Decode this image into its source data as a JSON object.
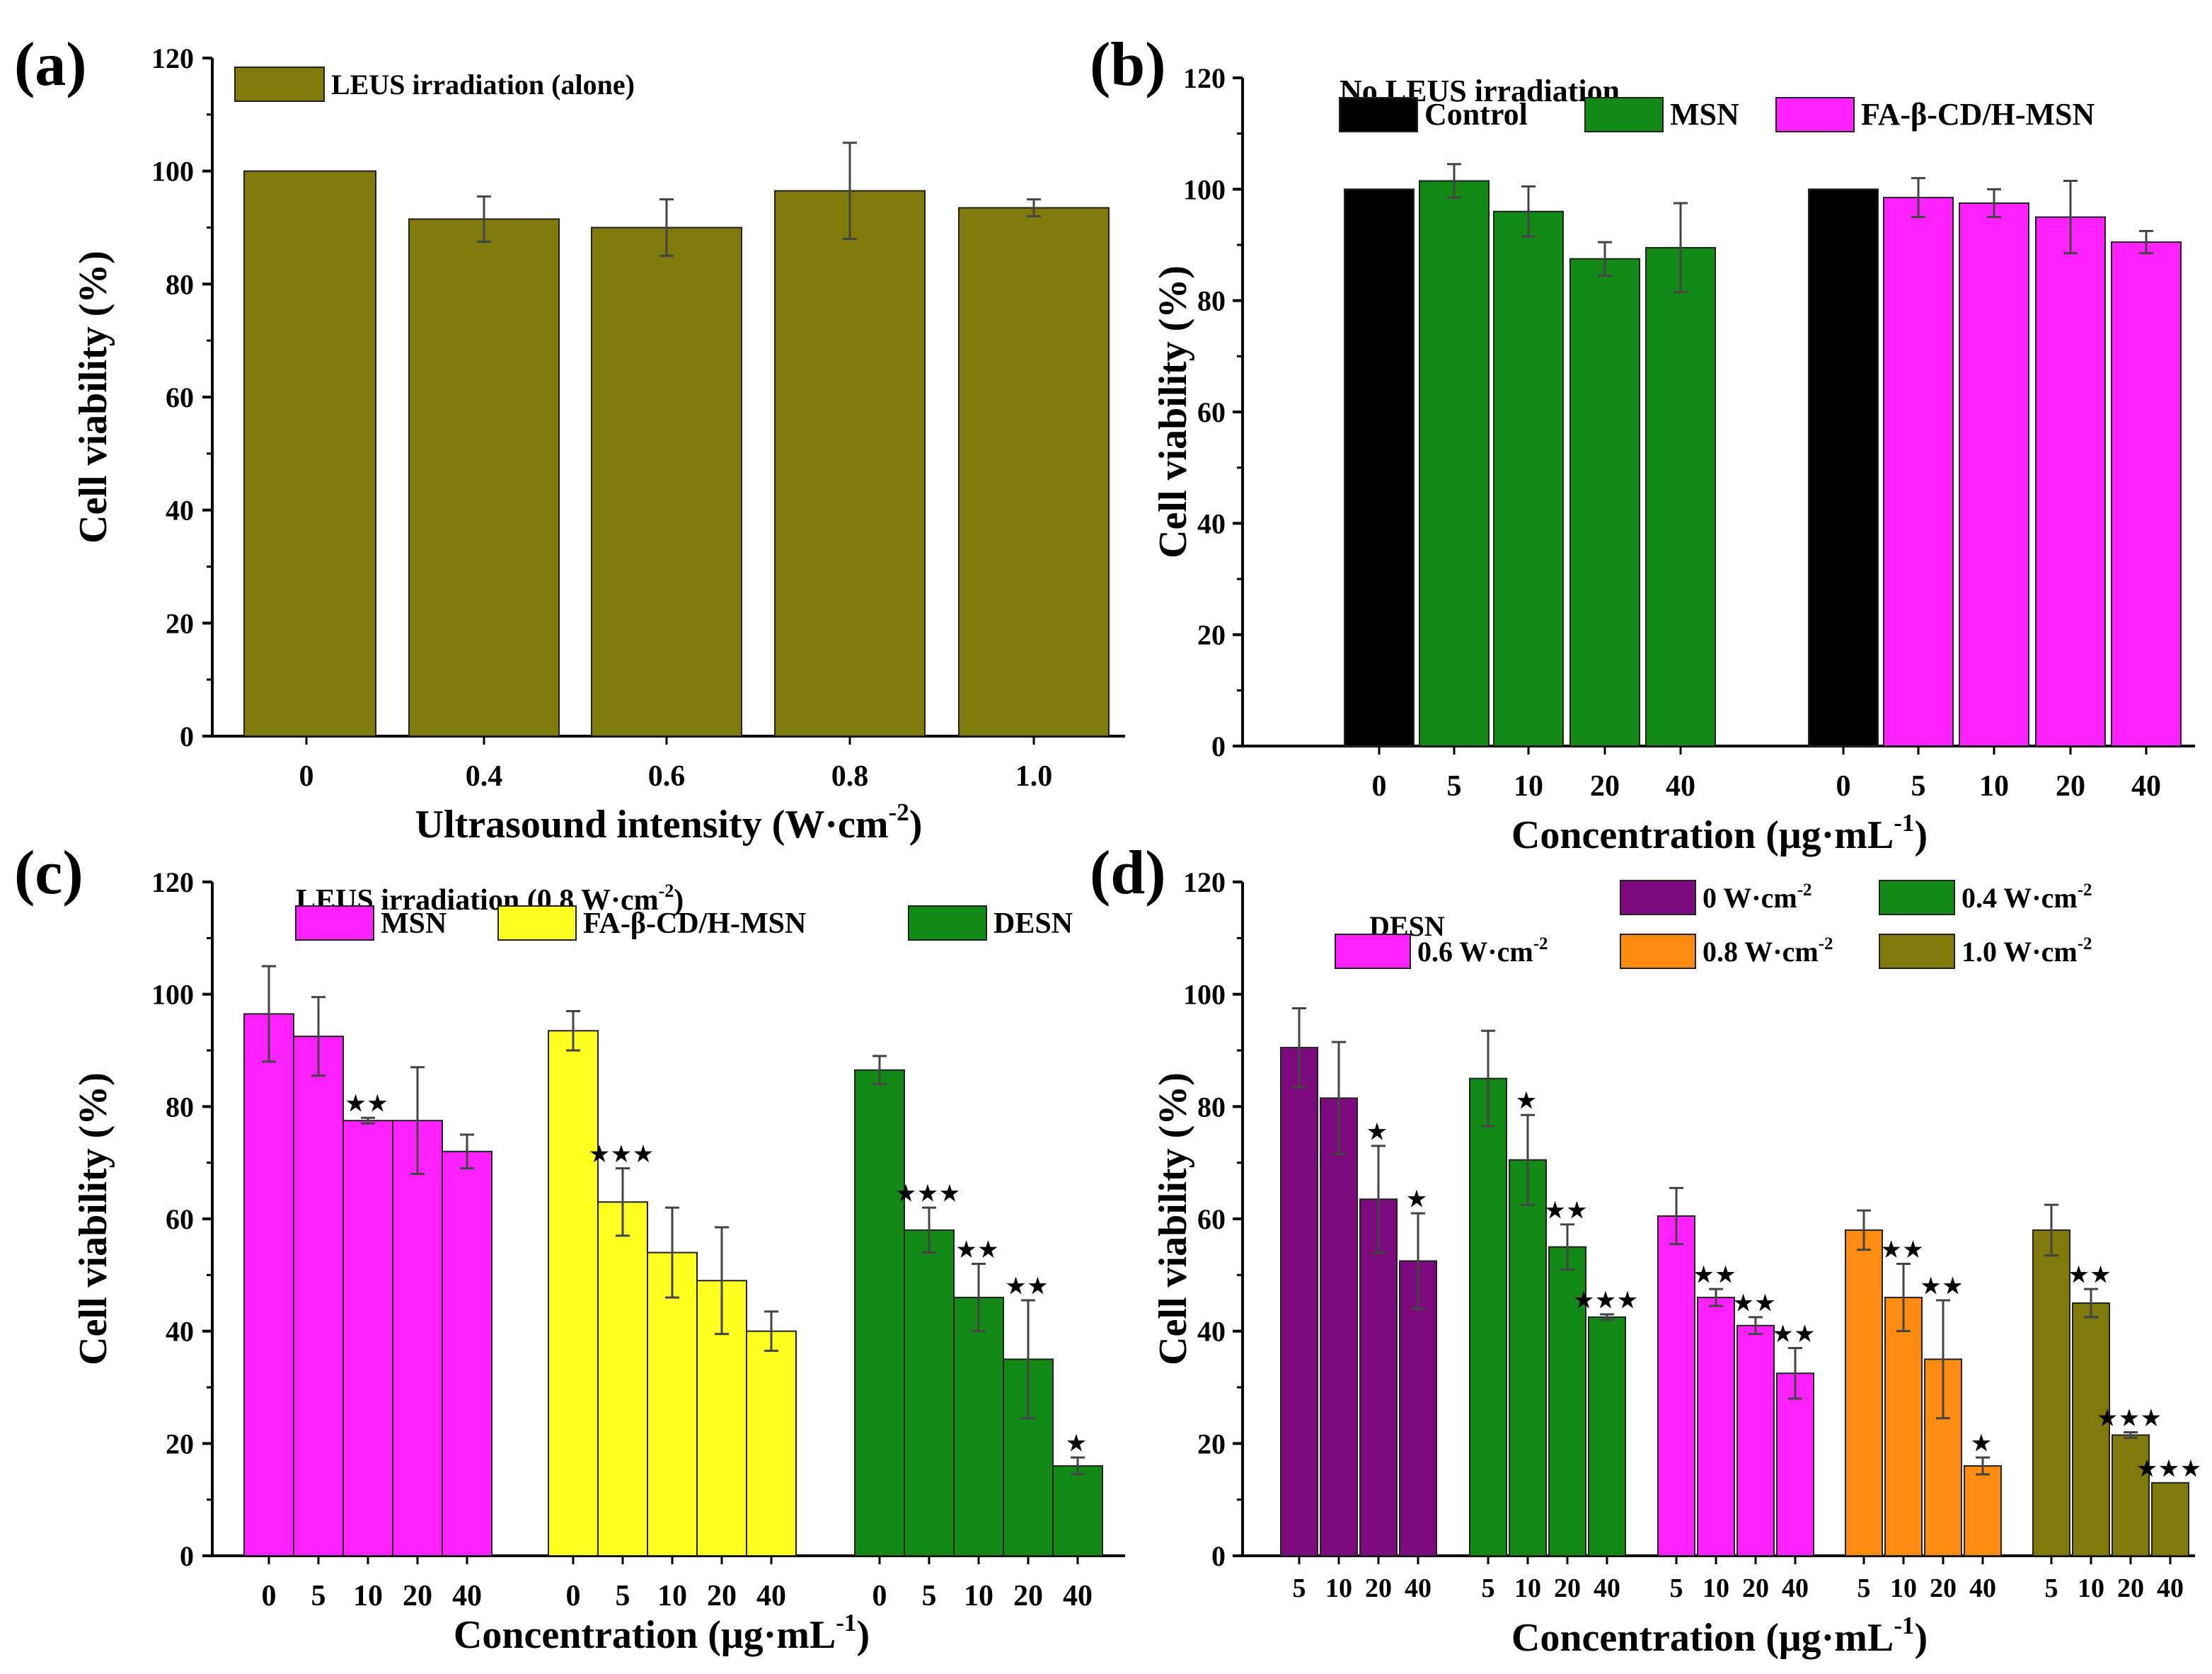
{
  "chart_data": [
    {
      "panel": "(a)",
      "type": "bar",
      "ylabel": "Cell viability (%)",
      "xlabel": "Ultrasound intensity (W·cm",
      "xlabel_sup": "-2",
      "xlabel_end": ")",
      "ylim": [
        0,
        120
      ],
      "yticks": [
        "0",
        "20",
        "40",
        "60",
        "80",
        "100",
        "120"
      ],
      "legend": [
        {
          "name": "LEUS irradiation (alone)",
          "color": "#7f7a0b"
        }
      ],
      "groups": [
        {
          "bars": [
            {
              "label": "0",
              "value": 100,
              "err": 0,
              "color": "#7f7a0b",
              "stars": ""
            },
            {
              "label": "0.4",
              "value": 91.5,
              "err": 4,
              "color": "#7f7a0b",
              "stars": ""
            },
            {
              "label": "0.6",
              "value": 90,
              "err": 5,
              "color": "#7f7a0b",
              "stars": ""
            },
            {
              "label": "0.8",
              "value": 96.5,
              "err": 8.5,
              "color": "#7f7a0b",
              "stars": ""
            },
            {
              "label": "1.0",
              "value": 93.5,
              "err": 1.5,
              "color": "#7f7a0b",
              "stars": ""
            }
          ]
        }
      ]
    },
    {
      "panel": "(b)",
      "type": "bar",
      "ylabel": "Cell viability (%)",
      "xlabel": "Concentration (μg·mL",
      "xlabel_sup": "-1",
      "xlabel_end": ")",
      "ylim": [
        0,
        120
      ],
      "yticks": [
        "0",
        "20",
        "40",
        "60",
        "80",
        "100",
        "120"
      ],
      "legend_title": "No LEUS irradiation",
      "legend": [
        {
          "name": "Control",
          "color": "#000000"
        },
        {
          "name": "MSN",
          "color": "#138a18"
        },
        {
          "name": "FA-β-CD/H-MSN",
          "color": "#ff22ff"
        }
      ],
      "groups": [
        {
          "bars": [
            {
              "label": "0",
              "value": 100,
              "err": 0,
              "color": "#000000",
              "stars": ""
            },
            {
              "label": "5",
              "value": 101.5,
              "err": 3,
              "color": "#138a18",
              "stars": ""
            },
            {
              "label": "10",
              "value": 96,
              "err": 4.5,
              "color": "#138a18",
              "stars": ""
            },
            {
              "label": "20",
              "value": 87.5,
              "err": 3,
              "color": "#138a18",
              "stars": ""
            },
            {
              "label": "40",
              "value": 89.5,
              "err": 8,
              "color": "#138a18",
              "stars": ""
            }
          ]
        },
        {
          "bars": [
            {
              "label": "0",
              "value": 100,
              "err": 0,
              "color": "#000000",
              "stars": ""
            },
            {
              "label": "5",
              "value": 98.5,
              "err": 3.5,
              "color": "#ff22ff",
              "stars": ""
            },
            {
              "label": "10",
              "value": 97.5,
              "err": 2.5,
              "color": "#ff22ff",
              "stars": ""
            },
            {
              "label": "20",
              "value": 95,
              "err": 6.5,
              "color": "#ff22ff",
              "stars": ""
            },
            {
              "label": "40",
              "value": 90.5,
              "err": 2,
              "color": "#ff22ff",
              "stars": ""
            }
          ]
        }
      ]
    },
    {
      "panel": "(c)",
      "type": "bar",
      "ylabel": "Cell viability (%)",
      "xlabel": "Concentration (μg·mL",
      "xlabel_sup": "-1",
      "xlabel_end": ")",
      "ylim": [
        0,
        120
      ],
      "yticks": [
        "0",
        "20",
        "40",
        "60",
        "80",
        "100",
        "120"
      ],
      "legend_title": "LEUS irradiation (0.8 W·cm",
      "legend_title_sup": "-2",
      "legend_title_end": ")",
      "legend": [
        {
          "name": "MSN",
          "color": "#ff22ff"
        },
        {
          "name": "FA-β-CD/H-MSN",
          "color": "#ffff22"
        },
        {
          "name": "DESN",
          "color": "#138a18"
        }
      ],
      "groups": [
        {
          "bars": [
            {
              "label": "0",
              "value": 96.5,
              "err": 8.5,
              "color": "#ff22ff",
              "stars": ""
            },
            {
              "label": "5",
              "value": 92.5,
              "err": 7,
              "color": "#ff22ff",
              "stars": ""
            },
            {
              "label": "10",
              "value": 77.5,
              "err": 0.5,
              "color": "#ff22ff",
              "stars": "★★"
            },
            {
              "label": "20",
              "value": 77.5,
              "err": 9.5,
              "color": "#ff22ff",
              "stars": ""
            },
            {
              "label": "40",
              "value": 72,
              "err": 3,
              "color": "#ff22ff",
              "stars": ""
            }
          ]
        },
        {
          "bars": [
            {
              "label": "0",
              "value": 93.5,
              "err": 3.5,
              "color": "#ffff22",
              "stars": ""
            },
            {
              "label": "5",
              "value": 63,
              "err": 6,
              "color": "#ffff22",
              "stars": "★★★"
            },
            {
              "label": "10",
              "value": 54,
              "err": 8,
              "color": "#ffff22",
              "stars": ""
            },
            {
              "label": "20",
              "value": 49,
              "err": 9.5,
              "color": "#ffff22",
              "stars": ""
            },
            {
              "label": "40",
              "value": 40,
              "err": 3.5,
              "color": "#ffff22",
              "stars": ""
            }
          ]
        },
        {
          "bars": [
            {
              "label": "0",
              "value": 86.5,
              "err": 2.5,
              "color": "#138a18",
              "stars": ""
            },
            {
              "label": "5",
              "value": 58,
              "err": 4,
              "color": "#138a18",
              "stars": "★★★"
            },
            {
              "label": "10",
              "value": 46,
              "err": 6,
              "color": "#138a18",
              "stars": "★★"
            },
            {
              "label": "20",
              "value": 35,
              "err": 10.5,
              "color": "#138a18",
              "stars": "★★"
            },
            {
              "label": "40",
              "value": 16,
              "err": 1.5,
              "color": "#138a18",
              "stars": "★"
            }
          ]
        }
      ]
    },
    {
      "panel": "(d)",
      "type": "bar",
      "ylabel": "Cell viability (%)",
      "xlabel": "Concentration (μg·mL",
      "xlabel_sup": "-1",
      "xlabel_end": ")",
      "ylim": [
        0,
        120
      ],
      "yticks": [
        "0",
        "20",
        "40",
        "60",
        "80",
        "100",
        "120"
      ],
      "legend_title": "DESN",
      "legend": [
        {
          "name": "0 W·cm",
          "sup": "-2",
          "color": "#7d0b7d"
        },
        {
          "name": "0.4 W·cm",
          "sup": "-2",
          "color": "#138a18"
        },
        {
          "name": "0.6 W·cm",
          "sup": "-2",
          "color": "#ff22ff"
        },
        {
          "name": "0.8 W·cm",
          "sup": "-2",
          "color": "#ff8c11"
        },
        {
          "name": "1.0 W·cm",
          "sup": "-2",
          "color": "#7f7a0b"
        }
      ],
      "groups": [
        {
          "bars": [
            {
              "label": "5",
              "value": 90.5,
              "err": 7,
              "color": "#7d0b7d",
              "stars": ""
            },
            {
              "label": "10",
              "value": 81.5,
              "err": 10,
              "color": "#7d0b7d",
              "stars": ""
            },
            {
              "label": "20",
              "value": 63.5,
              "err": 9.5,
              "color": "#7d0b7d",
              "stars": "★"
            },
            {
              "label": "40",
              "value": 52.5,
              "err": 8.5,
              "color": "#7d0b7d",
              "stars": "★"
            }
          ]
        },
        {
          "bars": [
            {
              "label": "5",
              "value": 85,
              "err": 8.5,
              "color": "#138a18",
              "stars": ""
            },
            {
              "label": "10",
              "value": 70.5,
              "err": 8,
              "color": "#138a18",
              "stars": "★"
            },
            {
              "label": "20",
              "value": 55,
              "err": 4,
              "color": "#138a18",
              "stars": "★★"
            },
            {
              "label": "40",
              "value": 42.5,
              "err": 0.5,
              "color": "#138a18",
              "stars": "★★★"
            }
          ]
        },
        {
          "bars": [
            {
              "label": "5",
              "value": 60.5,
              "err": 5,
              "color": "#ff22ff",
              "stars": ""
            },
            {
              "label": "10",
              "value": 46,
              "err": 1.5,
              "color": "#ff22ff",
              "stars": "★★"
            },
            {
              "label": "20",
              "value": 41,
              "err": 1.5,
              "color": "#ff22ff",
              "stars": "★★"
            },
            {
              "label": "40",
              "value": 32.5,
              "err": 4.5,
              "color": "#ff22ff",
              "stars": "★★"
            }
          ]
        },
        {
          "bars": [
            {
              "label": "5",
              "value": 58,
              "err": 3.5,
              "color": "#ff8c11",
              "stars": ""
            },
            {
              "label": "10",
              "value": 46,
              "err": 6,
              "color": "#ff8c11",
              "stars": "★★"
            },
            {
              "label": "20",
              "value": 35,
              "err": 10.5,
              "color": "#ff8c11",
              "stars": "★★"
            },
            {
              "label": "40",
              "value": 16,
              "err": 1.5,
              "color": "#ff8c11",
              "stars": "★"
            }
          ]
        },
        {
          "bars": [
            {
              "label": "5",
              "value": 58,
              "err": 4.5,
              "color": "#7f7a0b",
              "stars": ""
            },
            {
              "label": "10",
              "value": 45,
              "err": 2.5,
              "color": "#7f7a0b",
              "stars": "★★"
            },
            {
              "label": "20",
              "value": 21.5,
              "err": 0.5,
              "color": "#7f7a0b",
              "stars": "★★★"
            },
            {
              "label": "40",
              "value": 13,
              "err": 0,
              "color": "#7f7a0b",
              "stars": "★★★"
            }
          ]
        }
      ]
    }
  ]
}
